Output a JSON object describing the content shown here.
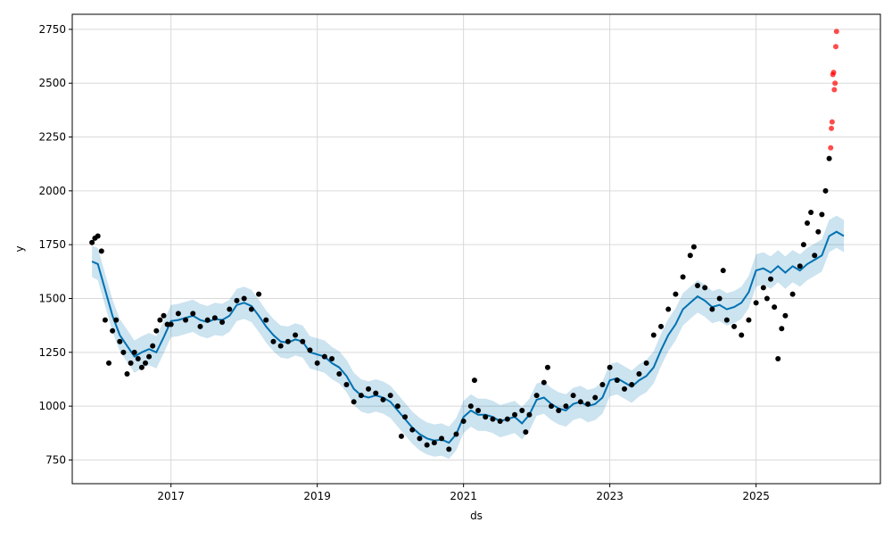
{
  "chart_data": {
    "type": "line",
    "title": "",
    "xlabel": "ds",
    "ylabel": "y",
    "xlim": [
      2015.65,
      2026.7
    ],
    "ylim": [
      640,
      2820
    ],
    "grid": true,
    "x_ticks": [
      2017,
      2019,
      2021,
      2023,
      2025
    ],
    "x_tick_labels": [
      "2017",
      "2019",
      "2021",
      "2023",
      "2025"
    ],
    "y_ticks": [
      750,
      1000,
      1250,
      1500,
      1750,
      2000,
      2250,
      2500,
      2750
    ],
    "y_tick_labels": [
      "750",
      "1000",
      "1250",
      "1500",
      "1750",
      "2000",
      "2250",
      "2500",
      "2750"
    ],
    "colors": {
      "forecast_line": "#0072B2",
      "uncertainty_band": "#0072B2",
      "observed_points": "#000000",
      "anomaly_points": "#ff0000",
      "grid": "#d9d9d9"
    },
    "series": [
      {
        "role": "forecast",
        "x": [
          2015.92,
          2016.0,
          2016.1,
          2016.2,
          2016.3,
          2016.4,
          2016.5,
          2016.6,
          2016.7,
          2016.8,
          2016.9,
          2017.0,
          2017.1,
          2017.2,
          2017.3,
          2017.4,
          2017.5,
          2017.6,
          2017.7,
          2017.8,
          2017.9,
          2018.0,
          2018.1,
          2018.2,
          2018.3,
          2018.4,
          2018.5,
          2018.6,
          2018.7,
          2018.8,
          2018.9,
          2019.0,
          2019.1,
          2019.2,
          2019.3,
          2019.4,
          2019.5,
          2019.6,
          2019.7,
          2019.8,
          2019.9,
          2020.0,
          2020.1,
          2020.2,
          2020.3,
          2020.4,
          2020.5,
          2020.6,
          2020.7,
          2020.8,
          2020.9,
          2021.0,
          2021.1,
          2021.2,
          2021.3,
          2021.4,
          2021.5,
          2021.6,
          2021.7,
          2021.8,
          2021.9,
          2022.0,
          2022.1,
          2022.2,
          2022.3,
          2022.4,
          2022.5,
          2022.6,
          2022.7,
          2022.8,
          2022.9,
          2023.0,
          2023.1,
          2023.2,
          2023.3,
          2023.4,
          2023.5,
          2023.6,
          2023.7,
          2023.8,
          2023.9,
          2024.0,
          2024.1,
          2024.2,
          2024.3,
          2024.4,
          2024.5,
          2024.6,
          2024.7,
          2024.8,
          2024.9,
          2025.0,
          2025.1,
          2025.2,
          2025.3,
          2025.4,
          2025.5,
          2025.6,
          2025.7,
          2025.8,
          2025.9,
          2026.0,
          2026.1,
          2026.2
        ],
        "y": [
          1672,
          1660,
          1540,
          1420,
          1330,
          1280,
          1230,
          1250,
          1265,
          1250,
          1320,
          1395,
          1400,
          1410,
          1420,
          1400,
          1390,
          1405,
          1400,
          1420,
          1470,
          1480,
          1465,
          1420,
          1370,
          1330,
          1300,
          1295,
          1310,
          1300,
          1250,
          1240,
          1230,
          1200,
          1180,
          1140,
          1080,
          1050,
          1040,
          1050,
          1040,
          1020,
          980,
          940,
          900,
          870,
          850,
          840,
          845,
          830,
          870,
          950,
          980,
          960,
          960,
          950,
          930,
          940,
          950,
          920,
          960,
          1030,
          1040,
          1010,
          990,
          980,
          1010,
          1020,
          1000,
          1010,
          1040,
          1120,
          1130,
          1110,
          1090,
          1120,
          1140,
          1180,
          1260,
          1330,
          1380,
          1450,
          1480,
          1510,
          1490,
          1460,
          1470,
          1450,
          1460,
          1480,
          1530,
          1630,
          1640,
          1620,
          1650,
          1620,
          1650,
          1630,
          1660,
          1680,
          1700,
          1790,
          1810,
          1790
        ]
      },
      {
        "role": "uncertainty_upper",
        "x": [
          2015.92,
          2016.0,
          2016.1,
          2016.2,
          2016.3,
          2016.4,
          2016.5,
          2016.6,
          2016.7,
          2016.8,
          2016.9,
          2017.0,
          2017.1,
          2017.2,
          2017.3,
          2017.4,
          2017.5,
          2017.6,
          2017.7,
          2017.8,
          2017.9,
          2018.0,
          2018.1,
          2018.2,
          2018.3,
          2018.4,
          2018.5,
          2018.6,
          2018.7,
          2018.8,
          2018.9,
          2019.0,
          2019.1,
          2019.2,
          2019.3,
          2019.4,
          2019.5,
          2019.6,
          2019.7,
          2019.8,
          2019.9,
          2020.0,
          2020.1,
          2020.2,
          2020.3,
          2020.4,
          2020.5,
          2020.6,
          2020.7,
          2020.8,
          2020.9,
          2021.0,
          2021.1,
          2021.2,
          2021.3,
          2021.4,
          2021.5,
          2021.6,
          2021.7,
          2021.8,
          2021.9,
          2022.0,
          2022.1,
          2022.2,
          2022.3,
          2022.4,
          2022.5,
          2022.6,
          2022.7,
          2022.8,
          2022.9,
          2023.0,
          2023.1,
          2023.2,
          2023.3,
          2023.4,
          2023.5,
          2023.6,
          2023.7,
          2023.8,
          2023.9,
          2024.0,
          2024.1,
          2024.2,
          2024.3,
          2024.4,
          2024.5,
          2024.6,
          2024.7,
          2024.8,
          2024.9,
          2025.0,
          2025.1,
          2025.2,
          2025.3,
          2025.4,
          2025.5,
          2025.6,
          2025.7,
          2025.8,
          2025.9,
          2026.0,
          2026.1,
          2026.2
        ],
        "y": [
          1745,
          1735,
          1615,
          1495,
          1405,
          1355,
          1305,
          1325,
          1340,
          1325,
          1395,
          1470,
          1475,
          1485,
          1495,
          1475,
          1465,
          1480,
          1475,
          1495,
          1545,
          1555,
          1540,
          1495,
          1445,
          1405,
          1375,
          1370,
          1385,
          1375,
          1325,
          1315,
          1305,
          1275,
          1255,
          1215,
          1155,
          1125,
          1115,
          1125,
          1115,
          1095,
          1055,
          1015,
          975,
          945,
          925,
          915,
          920,
          905,
          945,
          1025,
          1055,
          1035,
          1035,
          1025,
          1005,
          1015,
          1025,
          995,
          1035,
          1105,
          1115,
          1085,
          1065,
          1055,
          1085,
          1095,
          1075,
          1085,
          1115,
          1195,
          1205,
          1185,
          1165,
          1195,
          1215,
          1255,
          1335,
          1405,
          1455,
          1525,
          1555,
          1585,
          1565,
          1535,
          1545,
          1525,
          1535,
          1555,
          1605,
          1705,
          1715,
          1695,
          1725,
          1695,
          1725,
          1705,
          1735,
          1755,
          1775,
          1865,
          1885,
          1865
        ]
      },
      {
        "role": "uncertainty_lower",
        "x": [
          2015.92,
          2016.0,
          2016.1,
          2016.2,
          2016.3,
          2016.4,
          2016.5,
          2016.6,
          2016.7,
          2016.8,
          2016.9,
          2017.0,
          2017.1,
          2017.2,
          2017.3,
          2017.4,
          2017.5,
          2017.6,
          2017.7,
          2017.8,
          2017.9,
          2018.0,
          2018.1,
          2018.2,
          2018.3,
          2018.4,
          2018.5,
          2018.6,
          2018.7,
          2018.8,
          2018.9,
          2019.0,
          2019.1,
          2019.2,
          2019.3,
          2019.4,
          2019.5,
          2019.6,
          2019.7,
          2019.8,
          2019.9,
          2020.0,
          2020.1,
          2020.2,
          2020.3,
          2020.4,
          2020.5,
          2020.6,
          2020.7,
          2020.8,
          2020.9,
          2021.0,
          2021.1,
          2021.2,
          2021.3,
          2021.4,
          2021.5,
          2021.6,
          2021.7,
          2021.8,
          2021.9,
          2022.0,
          2022.1,
          2022.2,
          2022.3,
          2022.4,
          2022.5,
          2022.6,
          2022.7,
          2022.8,
          2022.9,
          2023.0,
          2023.1,
          2023.2,
          2023.3,
          2023.4,
          2023.5,
          2023.6,
          2023.7,
          2023.8,
          2023.9,
          2024.0,
          2024.1,
          2024.2,
          2024.3,
          2024.4,
          2024.5,
          2024.6,
          2024.7,
          2024.8,
          2024.9,
          2025.0,
          2025.1,
          2025.2,
          2025.3,
          2025.4,
          2025.5,
          2025.6,
          2025.7,
          2025.8,
          2025.9,
          2026.0,
          2026.1,
          2026.2
        ],
        "y": [
          1600,
          1585,
          1465,
          1345,
          1255,
          1205,
          1155,
          1175,
          1190,
          1175,
          1245,
          1320,
          1325,
          1335,
          1345,
          1325,
          1315,
          1330,
          1325,
          1345,
          1395,
          1405,
          1390,
          1345,
          1295,
          1255,
          1225,
          1220,
          1235,
          1225,
          1175,
          1165,
          1155,
          1125,
          1105,
          1065,
          1005,
          975,
          965,
          975,
          965,
          945,
          905,
          865,
          825,
          795,
          775,
          765,
          770,
          755,
          795,
          875,
          905,
          885,
          885,
          875,
          855,
          865,
          875,
          845,
          885,
          955,
          965,
          935,
          915,
          905,
          935,
          945,
          925,
          935,
          965,
          1045,
          1055,
          1035,
          1015,
          1045,
          1065,
          1105,
          1185,
          1255,
          1305,
          1375,
          1405,
          1435,
          1415,
          1385,
          1395,
          1375,
          1385,
          1405,
          1455,
          1555,
          1565,
          1545,
          1575,
          1545,
          1575,
          1555,
          1585,
          1605,
          1625,
          1715,
          1735,
          1715
        ]
      },
      {
        "role": "observed",
        "x": [
          2015.92,
          2015.96,
          2016.0,
          2016.05,
          2016.1,
          2016.15,
          2016.2,
          2016.25,
          2016.3,
          2016.35,
          2016.4,
          2016.45,
          2016.5,
          2016.55,
          2016.6,
          2016.65,
          2016.7,
          2016.75,
          2016.8,
          2016.85,
          2016.9,
          2016.95,
          2017.0,
          2017.1,
          2017.2,
          2017.3,
          2017.4,
          2017.5,
          2017.6,
          2017.7,
          2017.8,
          2017.9,
          2018.0,
          2018.1,
          2018.2,
          2018.3,
          2018.4,
          2018.5,
          2018.6,
          2018.7,
          2018.8,
          2018.9,
          2019.0,
          2019.1,
          2019.2,
          2019.3,
          2019.4,
          2019.5,
          2019.6,
          2019.7,
          2019.8,
          2019.9,
          2020.0,
          2020.1,
          2020.15,
          2020.2,
          2020.3,
          2020.4,
          2020.5,
          2020.6,
          2020.7,
          2020.8,
          2020.9,
          2021.0,
          2021.1,
          2021.15,
          2021.2,
          2021.3,
          2021.4,
          2021.5,
          2021.6,
          2021.7,
          2021.8,
          2021.85,
          2021.9,
          2022.0,
          2022.1,
          2022.15,
          2022.2,
          2022.3,
          2022.4,
          2022.5,
          2022.6,
          2022.7,
          2022.8,
          2022.9,
          2023.0,
          2023.1,
          2023.2,
          2023.3,
          2023.4,
          2023.5,
          2023.6,
          2023.7,
          2023.8,
          2023.9,
          2024.0,
          2024.1,
          2024.15,
          2024.2,
          2024.3,
          2024.4,
          2024.5,
          2024.55,
          2024.6,
          2024.7,
          2024.8,
          2024.9,
          2025.0,
          2025.1,
          2025.15,
          2025.2,
          2025.25,
          2025.3,
          2025.35,
          2025.4,
          2025.5,
          2025.6,
          2025.65,
          2025.7,
          2025.75,
          2025.8,
          2025.85,
          2025.9,
          2025.95,
          2026.0
        ],
        "y": [
          1760,
          1780,
          1790,
          1720,
          1400,
          1200,
          1350,
          1400,
          1300,
          1250,
          1150,
          1200,
          1250,
          1220,
          1180,
          1200,
          1230,
          1280,
          1350,
          1400,
          1420,
          1380,
          1380,
          1430,
          1400,
          1430,
          1370,
          1400,
          1410,
          1390,
          1450,
          1490,
          1500,
          1450,
          1520,
          1400,
          1300,
          1280,
          1300,
          1330,
          1300,
          1260,
          1200,
          1230,
          1220,
          1150,
          1100,
          1020,
          1050,
          1080,
          1060,
          1030,
          1050,
          1000,
          860,
          950,
          890,
          850,
          820,
          830,
          850,
          800,
          870,
          930,
          1000,
          1120,
          980,
          950,
          940,
          930,
          940,
          960,
          980,
          880,
          960,
          1050,
          1110,
          1180,
          1000,
          980,
          1000,
          1050,
          1020,
          1010,
          1040,
          1100,
          1180,
          1120,
          1080,
          1100,
          1150,
          1200,
          1330,
          1370,
          1450,
          1520,
          1600,
          1700,
          1740,
          1560,
          1550,
          1450,
          1500,
          1630,
          1400,
          1370,
          1330,
          1400,
          1480,
          1550,
          1500,
          1590,
          1460,
          1220,
          1360,
          1420,
          1520,
          1650,
          1750,
          1850,
          1900,
          1700,
          1810,
          1890,
          2000,
          2150
        ]
      },
      {
        "role": "anomaly",
        "x": [
          2026.02,
          2026.03,
          2026.04,
          2026.05,
          2026.06,
          2026.07,
          2026.08,
          2026.09,
          2026.1
        ],
        "y": [
          2200,
          2290,
          2320,
          2540,
          2550,
          2470,
          2500,
          2670,
          2740
        ]
      }
    ]
  }
}
